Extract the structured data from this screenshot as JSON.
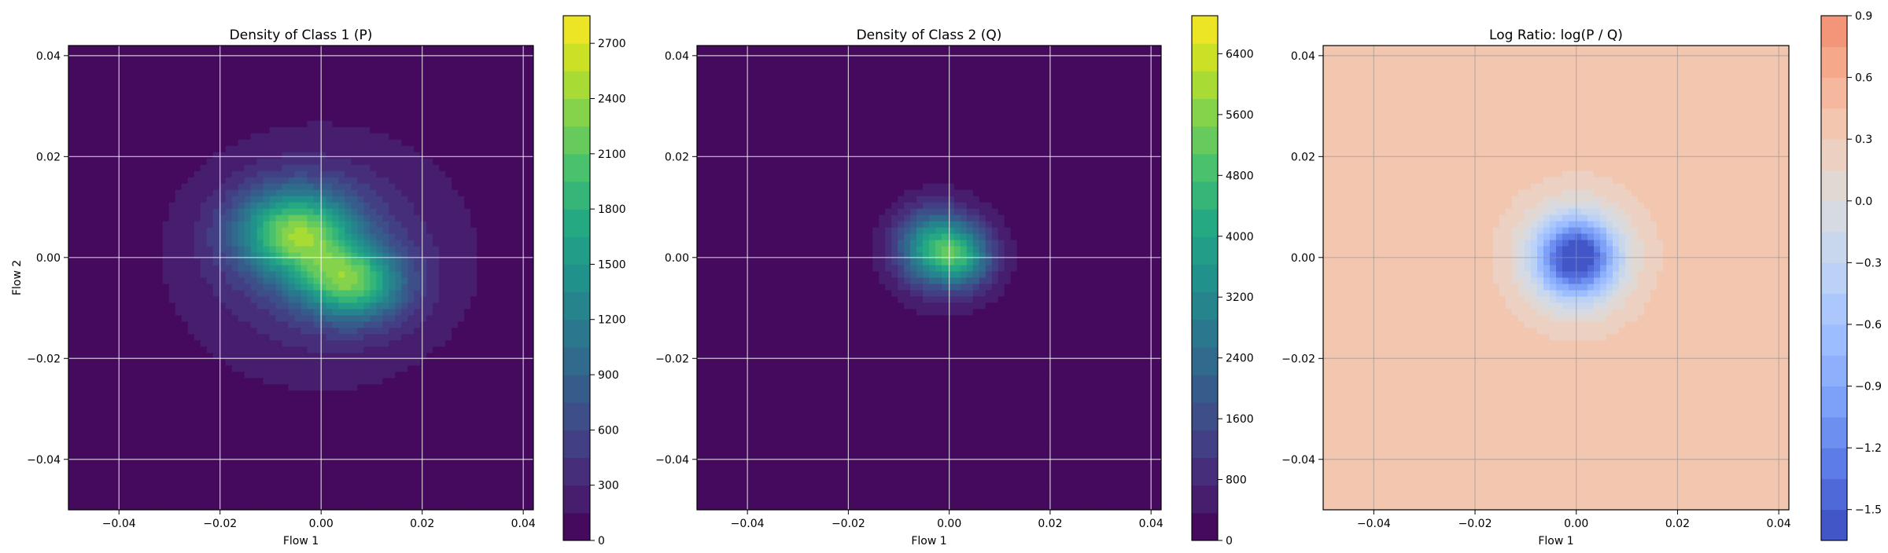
{
  "chart_data": [
    {
      "type": "heatmap",
      "title": "Density of Class 1 (P)",
      "xlabel": "Flow 1",
      "ylabel": "Flow 2",
      "xlim": [
        -0.05,
        0.042
      ],
      "ylim": [
        -0.05,
        0.042
      ],
      "xticks": [
        "−0.04",
        "−0.02",
        "0.00",
        "0.02",
        "0.04"
      ],
      "xtick_values": [
        -0.04,
        -0.02,
        0.0,
        0.02,
        0.04
      ],
      "yticks": [
        "−0.04",
        "−0.02",
        "0.00",
        "0.02",
        "0.04"
      ],
      "ytick_values": [
        -0.04,
        -0.02,
        0.0,
        0.02,
        0.04
      ],
      "grid": true,
      "colormap": "viridis",
      "colorbar": {
        "min": 0,
        "max": 2850,
        "ticks": [
          "0",
          "300",
          "600",
          "900",
          "1200",
          "1500",
          "1800",
          "2100",
          "2400",
          "2700"
        ],
        "tick_values": [
          0,
          300,
          600,
          900,
          1200,
          1500,
          1800,
          2100,
          2400,
          2700
        ],
        "color_low": "#440154",
        "color_high": "#24868e"
      },
      "density": {
        "components": [
          {
            "cx": -0.005,
            "cy": 0.005,
            "sx": 0.008,
            "sy": 0.006,
            "peak": 1900
          },
          {
            "cx": 0.006,
            "cy": -0.005,
            "sx": 0.007,
            "sy": 0.005,
            "peak": 1700
          },
          {
            "cx": 0.0,
            "cy": 0.0,
            "sx": 0.02,
            "sy": 0.017,
            "peak": 500
          }
        ]
      }
    },
    {
      "type": "heatmap",
      "title": "Density of Class 2 (Q)",
      "xlabel": "Flow 1",
      "ylabel": "",
      "xlim": [
        -0.05,
        0.042
      ],
      "ylim": [
        -0.05,
        0.042
      ],
      "xticks": [
        "−0.04",
        "−0.02",
        "0.00",
        "0.02",
        "0.04"
      ],
      "xtick_values": [
        -0.04,
        -0.02,
        0.0,
        0.02,
        0.04
      ],
      "yticks": [
        "−0.04",
        "−0.02",
        "0.00",
        "0.02",
        "0.04"
      ],
      "ytick_values": [
        -0.04,
        -0.02,
        0.0,
        0.02,
        0.04
      ],
      "grid": true,
      "colormap": "viridis",
      "colorbar": {
        "min": 0,
        "max": 6900,
        "ticks": [
          "0",
          "800",
          "1600",
          "2400",
          "3200",
          "4000",
          "4800",
          "5600",
          "6400"
        ],
        "tick_values": [
          0,
          800,
          1600,
          2400,
          3200,
          4000,
          4800,
          5600,
          6400
        ],
        "color_low": "#440154",
        "color_high": "#fde725"
      },
      "density": {
        "components": [
          {
            "cx": -0.003,
            "cy": 0.002,
            "sx": 0.005,
            "sy": 0.005,
            "peak": 3600
          },
          {
            "cx": 0.003,
            "cy": 0.0,
            "sx": 0.004,
            "sy": 0.004,
            "peak": 2400
          },
          {
            "cx": 0.0,
            "cy": 0.0,
            "sx": 0.011,
            "sy": 0.011,
            "peak": 500
          }
        ]
      }
    },
    {
      "type": "heatmap",
      "title": "Log Ratio: log(P / Q)",
      "xlabel": "Flow 1",
      "ylabel": "",
      "xlim": [
        -0.05,
        0.042
      ],
      "ylim": [
        -0.05,
        0.042
      ],
      "xticks": [
        "−0.04",
        "−0.02",
        "0.00",
        "0.02",
        "0.04"
      ],
      "xtick_values": [
        -0.04,
        -0.02,
        0.0,
        0.02,
        0.04
      ],
      "yticks": [
        "−0.04",
        "−0.02",
        "0.00",
        "0.02",
        "0.04"
      ],
      "ytick_values": [
        -0.04,
        -0.02,
        0.0,
        0.02,
        0.04
      ],
      "grid": true,
      "colormap": "coolwarm",
      "colorbar": {
        "min": -1.65,
        "max": 0.9,
        "ticks": [
          "−1.5",
          "−1.2",
          "−0.9",
          "−0.6",
          "−0.3",
          "0.0",
          "0.3",
          "0.6",
          "0.9"
        ],
        "tick_values": [
          -1.5,
          -1.2,
          -0.9,
          -0.6,
          -0.3,
          0.0,
          0.3,
          0.6,
          0.9
        ],
        "color_low": "#3b4cc0",
        "color_high": "#f08466"
      },
      "density": {
        "base": 0.45,
        "components": [
          {
            "cx": 0.0,
            "cy": 0.0,
            "sx": 0.0055,
            "sy": 0.0055,
            "peak": -1.95
          },
          {
            "cx": 0.0,
            "cy": 0.0,
            "sx": 0.012,
            "sy": 0.012,
            "peak": -0.35
          }
        ]
      }
    }
  ]
}
